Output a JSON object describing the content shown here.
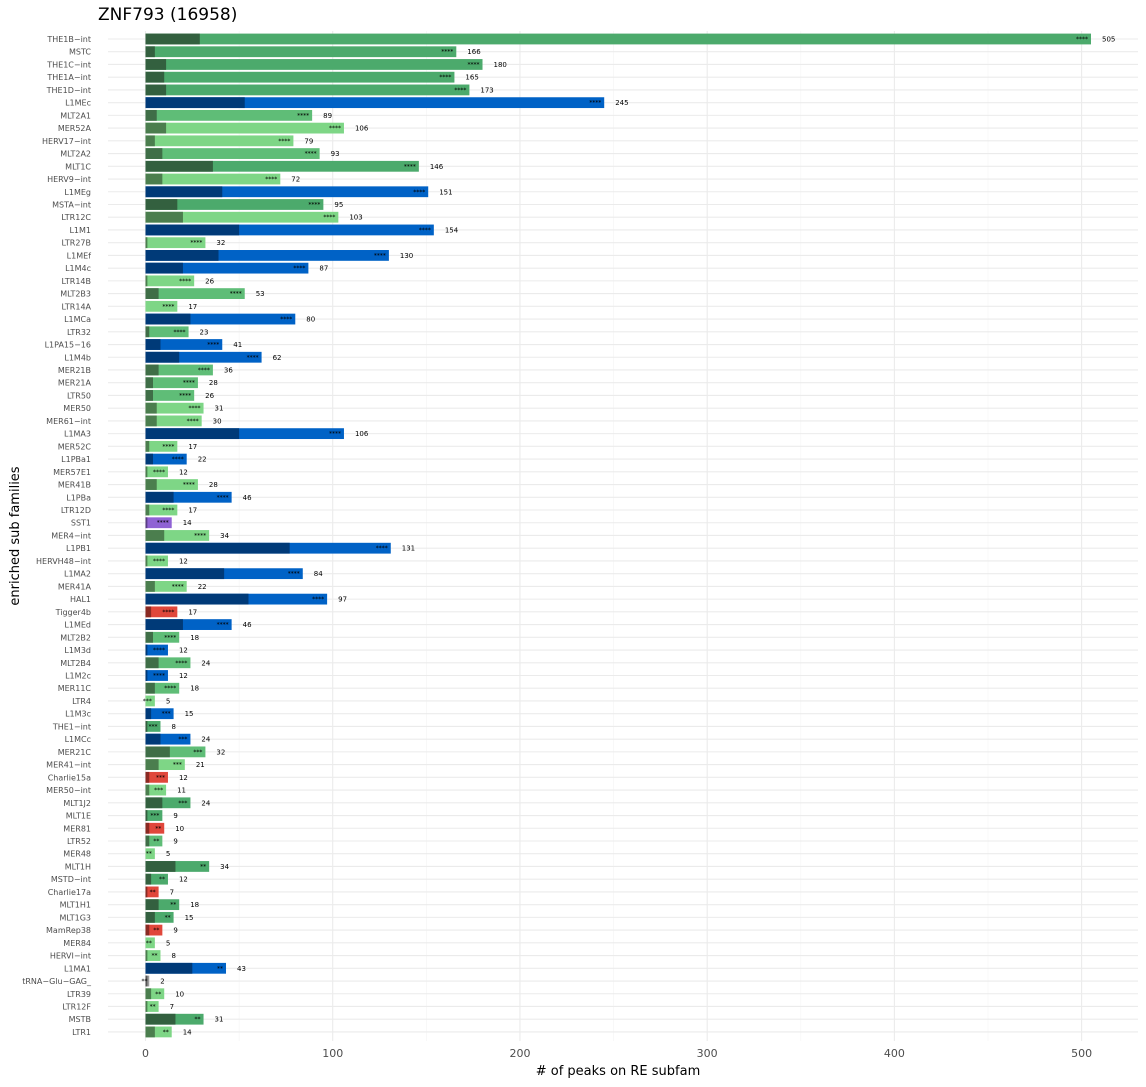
{
  "chart_data": {
    "type": "bar",
    "orientation": "horizontal",
    "stacked": true,
    "title": "ZNF793 (16958)",
    "xlabel": "# of peaks on RE subfam",
    "ylabel": "enriched sub families",
    "xlim": [
      0,
      520
    ],
    "xticks": [
      0,
      100,
      200,
      300,
      400,
      500
    ],
    "grid": true,
    "legend": "none",
    "colors": {
      "green": "#4caa6c",
      "green_dark": "#33603f",
      "lightgreen": "#7ed686",
      "lightgreen_dark": "#4b7e4e",
      "midgreen": "#5fbd77",
      "midgreen_dark": "#3f6e47",
      "blue": "#0062c6",
      "blue_dark": "#003a78",
      "red": "#e0473b",
      "red_dark": "#8a2a23",
      "purple": "#8f62d4",
      "purple_dark": "#5a3d85",
      "gray": "#9a9a9a",
      "gray_dark": "#555555"
    },
    "rows": [
      {
        "label": "THE1B−int",
        "total": 505,
        "inner": 29,
        "sig": "****",
        "color": "green"
      },
      {
        "label": "MSTC",
        "total": 166,
        "inner": 5,
        "sig": "****",
        "color": "green"
      },
      {
        "label": "THE1C−int",
        "total": 180,
        "inner": 11,
        "sig": "****",
        "color": "green"
      },
      {
        "label": "THE1A−int",
        "total": 165,
        "inner": 10,
        "sig": "****",
        "color": "green"
      },
      {
        "label": "THE1D−int",
        "total": 173,
        "inner": 11,
        "sig": "****",
        "color": "green"
      },
      {
        "label": "L1MEc",
        "total": 245,
        "inner": 53,
        "sig": "****",
        "color": "blue"
      },
      {
        "label": "MLT2A1",
        "total": 89,
        "inner": 6,
        "sig": "****",
        "color": "midgreen"
      },
      {
        "label": "MER52A",
        "total": 106,
        "inner": 11,
        "sig": "****",
        "color": "lightgreen"
      },
      {
        "label": "HERV17−int",
        "total": 79,
        "inner": 5,
        "sig": "****",
        "color": "lightgreen"
      },
      {
        "label": "MLT2A2",
        "total": 93,
        "inner": 9,
        "sig": "****",
        "color": "midgreen"
      },
      {
        "label": "MLT1C",
        "total": 146,
        "inner": 36,
        "sig": "****",
        "color": "green"
      },
      {
        "label": "HERV9−int",
        "total": 72,
        "inner": 9,
        "sig": "****",
        "color": "lightgreen"
      },
      {
        "label": "L1MEg",
        "total": 151,
        "inner": 41,
        "sig": "****",
        "color": "blue"
      },
      {
        "label": "MSTA−int",
        "total": 95,
        "inner": 17,
        "sig": "****",
        "color": "green"
      },
      {
        "label": "LTR12C",
        "total": 103,
        "inner": 20,
        "sig": "****",
        "color": "lightgreen"
      },
      {
        "label": "L1M1",
        "total": 154,
        "inner": 50,
        "sig": "****",
        "color": "blue"
      },
      {
        "label": "LTR27B",
        "total": 32,
        "inner": 1,
        "sig": "****",
        "color": "lightgreen"
      },
      {
        "label": "L1MEf",
        "total": 130,
        "inner": 39,
        "sig": "****",
        "color": "blue"
      },
      {
        "label": "L1M4c",
        "total": 87,
        "inner": 20,
        "sig": "****",
        "color": "blue"
      },
      {
        "label": "LTR14B",
        "total": 26,
        "inner": 1,
        "sig": "****",
        "color": "lightgreen"
      },
      {
        "label": "MLT2B3",
        "total": 53,
        "inner": 7,
        "sig": "****",
        "color": "midgreen"
      },
      {
        "label": "LTR14A",
        "total": 17,
        "inner": 0,
        "sig": "****",
        "color": "lightgreen"
      },
      {
        "label": "L1MCa",
        "total": 80,
        "inner": 24,
        "sig": "****",
        "color": "blue"
      },
      {
        "label": "LTR32",
        "total": 23,
        "inner": 2,
        "sig": "****",
        "color": "midgreen"
      },
      {
        "label": "L1PA15−16",
        "total": 41,
        "inner": 8,
        "sig": "****",
        "color": "blue"
      },
      {
        "label": "L1M4b",
        "total": 62,
        "inner": 18,
        "sig": "****",
        "color": "blue"
      },
      {
        "label": "MER21B",
        "total": 36,
        "inner": 7,
        "sig": "****",
        "color": "midgreen"
      },
      {
        "label": "MER21A",
        "total": 28,
        "inner": 4,
        "sig": "****",
        "color": "midgreen"
      },
      {
        "label": "LTR50",
        "total": 26,
        "inner": 4,
        "sig": "****",
        "color": "midgreen"
      },
      {
        "label": "MER50",
        "total": 31,
        "inner": 6,
        "sig": "****",
        "color": "lightgreen"
      },
      {
        "label": "MER61−int",
        "total": 30,
        "inner": 6,
        "sig": "****",
        "color": "lightgreen"
      },
      {
        "label": "L1MA3",
        "total": 106,
        "inner": 50,
        "sig": "****",
        "color": "blue"
      },
      {
        "label": "MER52C",
        "total": 17,
        "inner": 2,
        "sig": "****",
        "color": "lightgreen"
      },
      {
        "label": "L1PBa1",
        "total": 22,
        "inner": 4,
        "sig": "****",
        "color": "blue"
      },
      {
        "label": "MER57E1",
        "total": 12,
        "inner": 1,
        "sig": "****",
        "color": "lightgreen"
      },
      {
        "label": "MER41B",
        "total": 28,
        "inner": 6,
        "sig": "****",
        "color": "lightgreen"
      },
      {
        "label": "L1PBa",
        "total": 46,
        "inner": 15,
        "sig": "****",
        "color": "blue"
      },
      {
        "label": "LTR12D",
        "total": 17,
        "inner": 2,
        "sig": "****",
        "color": "lightgreen"
      },
      {
        "label": "SST1",
        "total": 14,
        "inner": 1,
        "sig": "****",
        "color": "purple"
      },
      {
        "label": "MER4−int",
        "total": 34,
        "inner": 10,
        "sig": "****",
        "color": "lightgreen"
      },
      {
        "label": "L1PB1",
        "total": 131,
        "inner": 77,
        "sig": "****",
        "color": "blue"
      },
      {
        "label": "HERVH48−int",
        "total": 12,
        "inner": 1,
        "sig": "****",
        "color": "lightgreen"
      },
      {
        "label": "L1MA2",
        "total": 84,
        "inner": 42,
        "sig": "****",
        "color": "blue"
      },
      {
        "label": "MER41A",
        "total": 22,
        "inner": 5,
        "sig": "****",
        "color": "lightgreen"
      },
      {
        "label": "HAL1",
        "total": 97,
        "inner": 55,
        "sig": "****",
        "color": "blue"
      },
      {
        "label": "Tigger4b",
        "total": 17,
        "inner": 3,
        "sig": "****",
        "color": "red"
      },
      {
        "label": "L1MEd",
        "total": 46,
        "inner": 20,
        "sig": "****",
        "color": "blue"
      },
      {
        "label": "MLT2B2",
        "total": 18,
        "inner": 4,
        "sig": "****",
        "color": "midgreen"
      },
      {
        "label": "L1M3d",
        "total": 12,
        "inner": 1,
        "sig": "****",
        "color": "blue"
      },
      {
        "label": "MLT2B4",
        "total": 24,
        "inner": 7,
        "sig": "****",
        "color": "midgreen"
      },
      {
        "label": "L1M2c",
        "total": 12,
        "inner": 1,
        "sig": "****",
        "color": "blue"
      },
      {
        "label": "MER11C",
        "total": 18,
        "inner": 5,
        "sig": "****",
        "color": "midgreen"
      },
      {
        "label": "LTR4",
        "total": 5,
        "inner": 0,
        "sig": "***",
        "color": "lightgreen"
      },
      {
        "label": "L1M3c",
        "total": 15,
        "inner": 3,
        "sig": "***",
        "color": "blue"
      },
      {
        "label": "THE1−int",
        "total": 8,
        "inner": 1,
        "sig": "***",
        "color": "green"
      },
      {
        "label": "L1MCc",
        "total": 24,
        "inner": 8,
        "sig": "***",
        "color": "blue"
      },
      {
        "label": "MER21C",
        "total": 32,
        "inner": 13,
        "sig": "***",
        "color": "midgreen"
      },
      {
        "label": "MER41−int",
        "total": 21,
        "inner": 7,
        "sig": "***",
        "color": "lightgreen"
      },
      {
        "label": "Charlie15a",
        "total": 12,
        "inner": 2,
        "sig": "***",
        "color": "red"
      },
      {
        "label": "MER50−int",
        "total": 11,
        "inner": 2,
        "sig": "***",
        "color": "lightgreen"
      },
      {
        "label": "MLT1J2",
        "total": 24,
        "inner": 9,
        "sig": "***",
        "color": "green"
      },
      {
        "label": "MLT1E",
        "total": 9,
        "inner": 1,
        "sig": "***",
        "color": "green"
      },
      {
        "label": "MER81",
        "total": 10,
        "inner": 2,
        "sig": "**",
        "color": "red"
      },
      {
        "label": "LTR52",
        "total": 9,
        "inner": 2,
        "sig": "**",
        "color": "midgreen"
      },
      {
        "label": "MER48",
        "total": 5,
        "inner": 0,
        "sig": "**",
        "color": "lightgreen"
      },
      {
        "label": "MLT1H",
        "total": 34,
        "inner": 16,
        "sig": "**",
        "color": "green"
      },
      {
        "label": "MSTD−int",
        "total": 12,
        "inner": 3,
        "sig": "**",
        "color": "green"
      },
      {
        "label": "Charlie17a",
        "total": 7,
        "inner": 1,
        "sig": "**",
        "color": "red"
      },
      {
        "label": "MLT1H1",
        "total": 18,
        "inner": 7,
        "sig": "**",
        "color": "green"
      },
      {
        "label": "MLT1G3",
        "total": 15,
        "inner": 5,
        "sig": "**",
        "color": "green"
      },
      {
        "label": "MamRep38",
        "total": 9,
        "inner": 2,
        "sig": "**",
        "color": "red"
      },
      {
        "label": "MER84",
        "total": 5,
        "inner": 0,
        "sig": "**",
        "color": "lightgreen"
      },
      {
        "label": "HERVI−int",
        "total": 8,
        "inner": 1,
        "sig": "**",
        "color": "lightgreen"
      },
      {
        "label": "L1MA1",
        "total": 43,
        "inner": 25,
        "sig": "**",
        "color": "blue"
      },
      {
        "label": "tRNA−Glu−GAG_",
        "total": 2,
        "inner": 1,
        "sig": "**",
        "color": "gray"
      },
      {
        "label": "LTR39",
        "total": 10,
        "inner": 3,
        "sig": "**",
        "color": "lightgreen"
      },
      {
        "label": "LTR12F",
        "total": 7,
        "inner": 1,
        "sig": "**",
        "color": "lightgreen"
      },
      {
        "label": "MSTB",
        "total": 31,
        "inner": 16,
        "sig": "**",
        "color": "green"
      },
      {
        "label": "LTR1",
        "total": 14,
        "inner": 5,
        "sig": "**",
        "color": "lightgreen"
      }
    ]
  }
}
